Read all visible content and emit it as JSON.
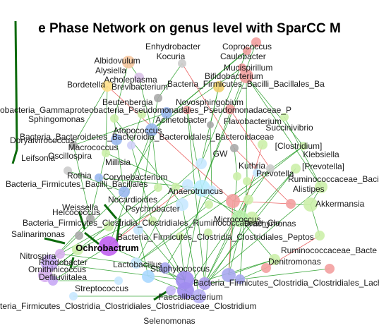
{
  "title": "e Phase Network on genus level with SparCC M",
  "network": {
    "labels": [
      "Enhydrobacter",
      "Coprococcus",
      "Kocuria",
      "Caulobacter",
      "Mucispirillum",
      "Albidovulum",
      "Alysiella",
      "Bifidobacterium",
      "Acholeplasma",
      "Bordetella",
      "Brevibacterium",
      "Bacteria_Firmicutes_Bacilli_Bacillales_Ba",
      "Beutenbergia",
      "Novosphingobium",
      "obacteria_Gammaproteobacteria_Pseudomonadales_Pseudomonadaceae_P",
      "Sphingomonas",
      "Acinetobacter",
      "Flavobacterium",
      "Atopococcus",
      "Succinivibrio",
      "Doryalvirococcus",
      "Bacteria_Bacteroidetes_Bacteroidia_Bacteroidales_Bacteroidaceae",
      "Leifsonia",
      "Oscillospira",
      "Macrococcus",
      "Klebsiella",
      "Millisia",
      "GW",
      "Kuthria",
      "Prevotella",
      "[Clostridium]",
      "[Prevotella]",
      "Rothia",
      "Corynebacterium",
      "Bacteria_Firmicutes_Bacilli_Bacillales",
      "Alistipes",
      "Anaerotruncus",
      "Ruminococcaceae_Bacillus",
      "Weissella",
      "Psychrobacter",
      "Nocardioides",
      "Helcococcus",
      "Akkermansia",
      "Bacteria_Firmicutes_Clostridia_Clostridiales_Ruminococcaceae_Clo",
      "Salinarimonas",
      "Bacteria_Firmicutes_Clostridia_Clostridiales_Peptos",
      "Ochrobactrum",
      "Nitrospira",
      "Ruminococcaceae_Bacte",
      "Denitromonas",
      "Ornithinicoccus",
      "Deflluviitalea",
      "Streptococcus",
      "Selenomonas",
      "teria_Firmicutes_Clostridia_Clostridiales_Clostridiaceae_Clostridium",
      "Bacteria_Firmicutes_Clostridia_Clostridiales_Lachnospira",
      "Faecalibacterium",
      "Lactobacillus",
      "Micrococcus",
      "Staphylococcus",
      "Brachymonas",
      "Rhodobacter"
    ]
  }
}
